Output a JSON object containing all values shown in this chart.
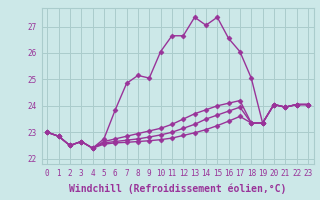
{
  "xlabel": "Windchill (Refroidissement éolien,°C)",
  "bg_color": "#cce8e8",
  "line_color": "#993399",
  "grid_color": "#aacccc",
  "xlim": [
    -0.5,
    23.5
  ],
  "ylim": [
    21.8,
    27.7
  ],
  "xtick_labels": [
    "0",
    "1",
    "2",
    "3",
    "4",
    "5",
    "6",
    "7",
    "8",
    "9",
    "10",
    "11",
    "12",
    "13",
    "14",
    "15",
    "16",
    "17",
    "18",
    "19",
    "20",
    "21",
    "22",
    "23"
  ],
  "ytick_values": [
    22,
    23,
    24,
    25,
    26,
    27
  ],
  "lines": [
    {
      "x": [
        0,
        1,
        2,
        3,
        4,
        5,
        6,
        7,
        8,
        9,
        10,
        11,
        12,
        13,
        14,
        15,
        16,
        17,
        18,
        19,
        20,
        21,
        22,
        23
      ],
      "y": [
        23.0,
        22.85,
        22.5,
        22.65,
        22.4,
        22.75,
        23.85,
        24.85,
        25.15,
        25.05,
        26.05,
        26.65,
        26.65,
        27.35,
        27.05,
        27.35,
        26.55,
        26.05,
        25.05,
        23.35,
        24.05,
        23.95,
        24.05,
        24.05
      ]
    },
    {
      "x": [
        0,
        1,
        2,
        3,
        4,
        5,
        6,
        7,
        8,
        9,
        10,
        11,
        12,
        13,
        14,
        15,
        16,
        17,
        18,
        19,
        20,
        21,
        22,
        23
      ],
      "y": [
        23.0,
        22.85,
        22.5,
        22.65,
        22.4,
        22.65,
        22.75,
        22.85,
        22.95,
        23.05,
        23.15,
        23.3,
        23.5,
        23.7,
        23.85,
        24.0,
        24.1,
        24.2,
        23.35,
        23.35,
        24.05,
        23.95,
        24.05,
        24.05
      ]
    },
    {
      "x": [
        0,
        1,
        2,
        3,
        4,
        5,
        6,
        7,
        8,
        9,
        10,
        11,
        12,
        13,
        14,
        15,
        16,
        17,
        18,
        19,
        20,
        21,
        22,
        23
      ],
      "y": [
        23.0,
        22.85,
        22.5,
        22.65,
        22.4,
        22.6,
        22.65,
        22.7,
        22.75,
        22.82,
        22.9,
        23.0,
        23.15,
        23.3,
        23.5,
        23.65,
        23.8,
        23.95,
        23.35,
        23.35,
        24.05,
        23.95,
        24.05,
        24.05
      ]
    },
    {
      "x": [
        0,
        1,
        2,
        3,
        4,
        5,
        6,
        7,
        8,
        9,
        10,
        11,
        12,
        13,
        14,
        15,
        16,
        17,
        18,
        19,
        20,
        21,
        22,
        23
      ],
      "y": [
        23.0,
        22.85,
        22.5,
        22.65,
        22.4,
        22.55,
        22.6,
        22.62,
        22.65,
        22.68,
        22.72,
        22.78,
        22.88,
        22.98,
        23.1,
        23.25,
        23.42,
        23.6,
        23.35,
        23.35,
        24.05,
        23.95,
        24.05,
        24.05
      ]
    }
  ],
  "marker": "D",
  "markersize": 2.5,
  "linewidth": 1.0,
  "tick_fontsize": 5.5,
  "label_fontsize": 7.0
}
